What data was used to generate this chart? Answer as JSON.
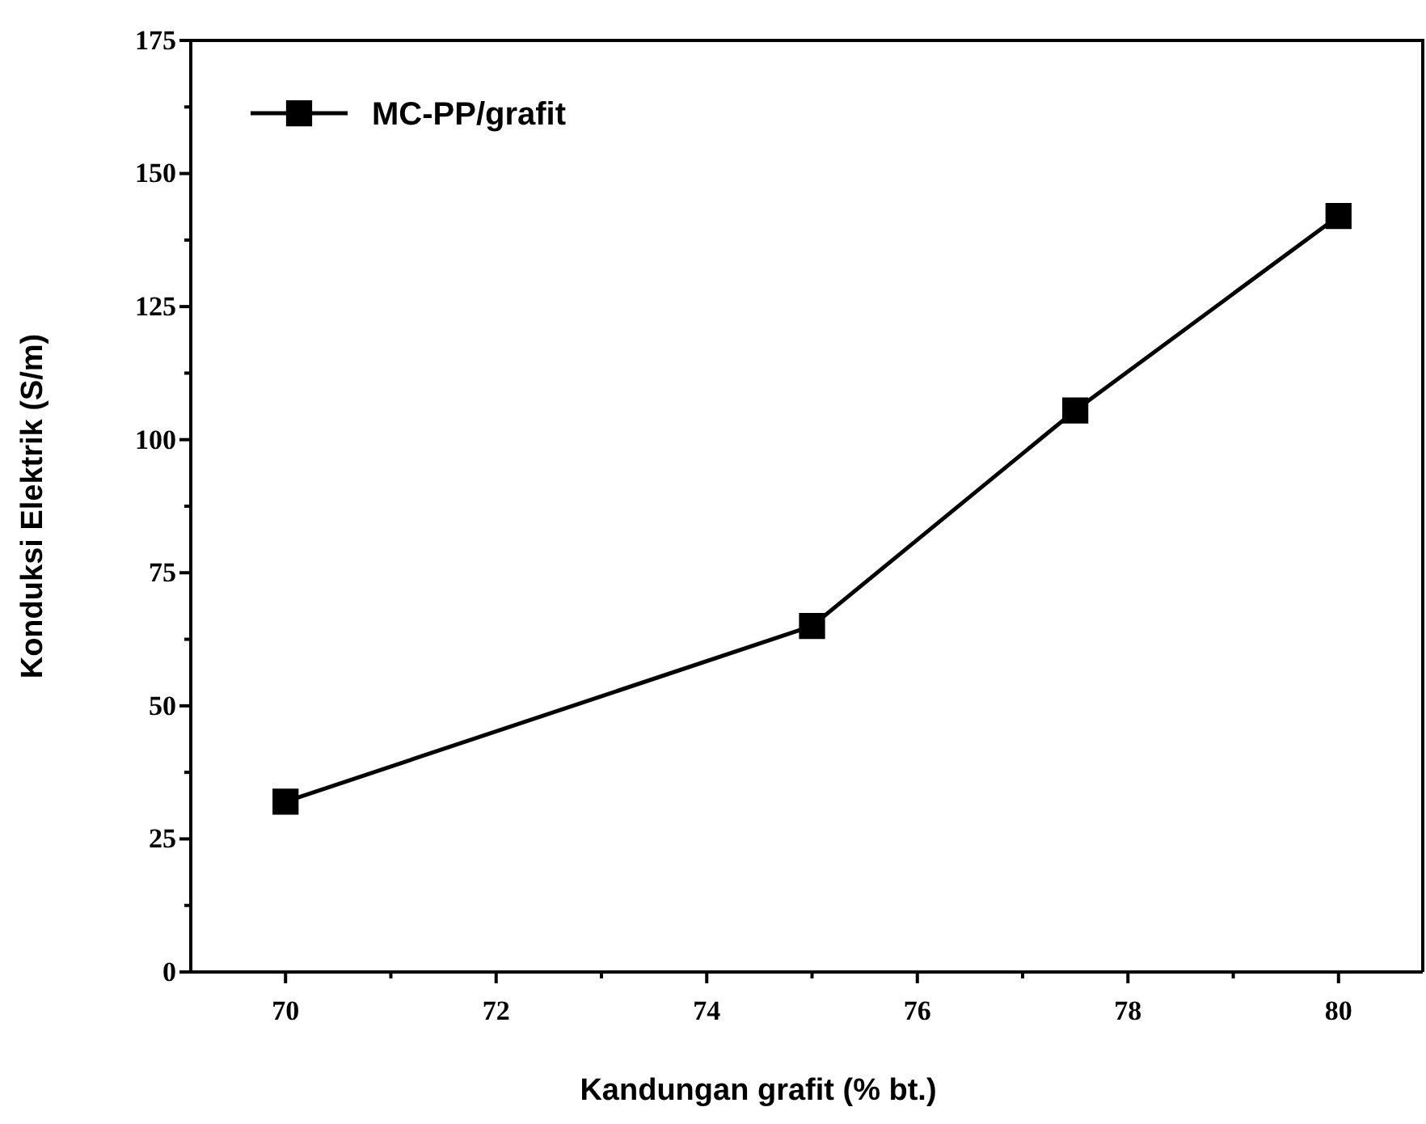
{
  "chart_data": {
    "type": "line",
    "xlabel": "Kandungan grafit (% bt.)",
    "ylabel": "Konduksi Elektrik (S/m)",
    "x": [
      70,
      75,
      77.5,
      80
    ],
    "series": [
      {
        "name": "MC-PP/grafit",
        "color": "#000000",
        "values": [
          32,
          65,
          105.5,
          142
        ]
      }
    ],
    "xlim": [
      69.1,
      80.8
    ],
    "xticks": [
      70,
      {
        "value": 71,
        "label": null
      },
      72,
      {
        "value": 73,
        "label": null
      },
      74,
      {
        "value": 75,
        "label": null
      },
      76,
      {
        "value": 77,
        "label": null
      },
      78,
      {
        "value": 79,
        "label": null
      },
      80
    ],
    "ylim": [
      0,
      175
    ],
    "yticks": [
      0,
      {
        "value": 12.5,
        "label": null
      },
      25,
      {
        "value": 37.5,
        "label": null
      },
      50,
      {
        "value": 62.5,
        "label": null
      },
      75,
      {
        "value": 87.5,
        "label": null
      },
      100,
      {
        "value": 112.5,
        "label": null
      },
      125,
      {
        "value": 137.5,
        "label": null
      },
      150,
      {
        "value": 162.5,
        "label": null
      },
      175
    ],
    "marker": "square",
    "line_style": "solid",
    "legend": "top left",
    "grid": false
  }
}
